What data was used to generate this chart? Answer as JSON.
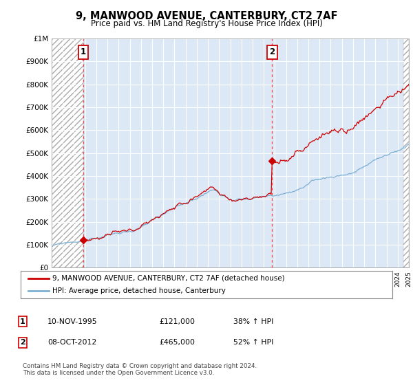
{
  "title": "9, MANWOOD AVENUE, CANTERBURY, CT2 7AF",
  "subtitle": "Price paid vs. HM Land Registry's House Price Index (HPI)",
  "sale1_price": 121000,
  "sale2_price": 465000,
  "hpi_color": "#7bafd4",
  "price_color": "#cc0000",
  "vline_color": "#ff4444",
  "annotation_box_color": "#cc0000",
  "background_color": "#dce8f5",
  "hatch_bg": "#e8e8e8",
  "legend_label_price": "9, MANWOOD AVENUE, CANTERBURY, CT2 7AF (detached house)",
  "legend_label_hpi": "HPI: Average price, detached house, Canterbury",
  "table_row1": [
    "1",
    "10-NOV-1995",
    "£121,000",
    "38% ↑ HPI"
  ],
  "table_row2": [
    "2",
    "08-OCT-2012",
    "£465,000",
    "52% ↑ HPI"
  ],
  "footnote": "Contains HM Land Registry data © Crown copyright and database right 2024.\nThis data is licensed under the Open Government Licence v3.0.",
  "ylim": [
    0,
    1000000
  ],
  "yticks": [
    0,
    100000,
    200000,
    300000,
    400000,
    500000,
    600000,
    700000,
    800000,
    900000,
    1000000
  ],
  "xstart": 1993,
  "xend": 2025
}
